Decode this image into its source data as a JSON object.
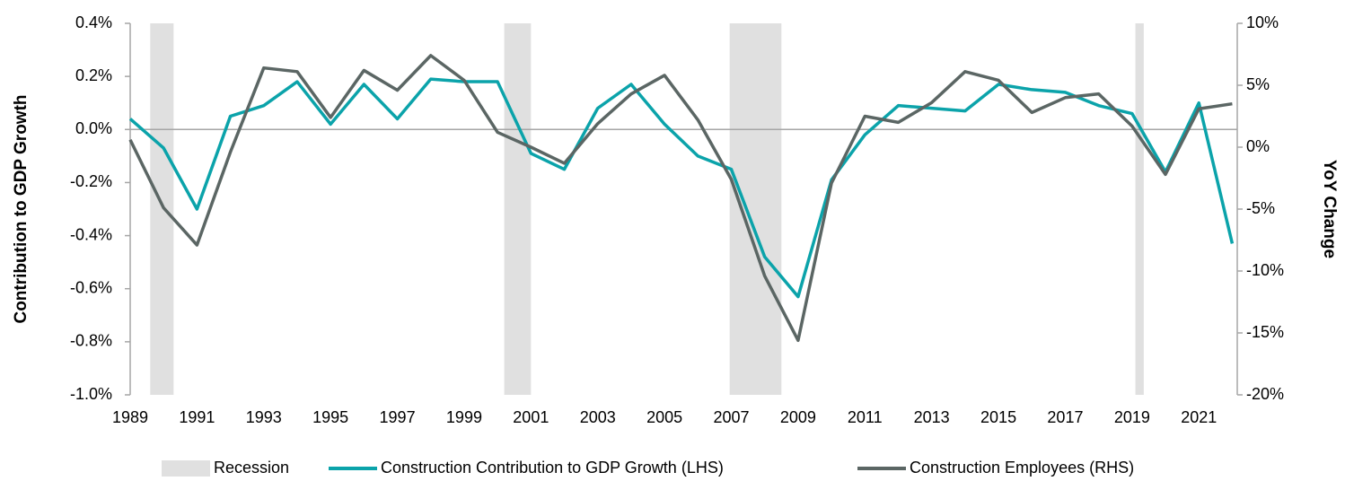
{
  "chart_data": {
    "type": "line",
    "y_label": "Contribution to GDP Growth",
    "y2_label": "YoY Change",
    "x": [
      1989,
      1990,
      1991,
      1992,
      1993,
      1994,
      1995,
      1996,
      1997,
      1998,
      1999,
      2000,
      2001,
      2002,
      2003,
      2004,
      2005,
      2006,
      2007,
      2008,
      2009,
      2010,
      2011,
      2012,
      2013,
      2014,
      2015,
      2016,
      2017,
      2018,
      2019,
      2020,
      2021,
      2022
    ],
    "xlim": [
      1989,
      2022.15
    ],
    "xticks": [
      1989,
      1991,
      1993,
      1995,
      1997,
      1999,
      2001,
      2003,
      2005,
      2007,
      2009,
      2011,
      2013,
      2015,
      2017,
      2019,
      2021
    ],
    "ylim": [
      -1.0,
      0.4
    ],
    "yticks": [
      {
        "value": -1.0,
        "label": "-1.0%"
      },
      {
        "value": -0.8,
        "label": "-0.8%"
      },
      {
        "value": -0.6,
        "label": "-0.6%"
      },
      {
        "value": -0.4,
        "label": "-0.4%"
      },
      {
        "value": -0.2,
        "label": "-0.2%"
      },
      {
        "value": 0.0,
        "label": "0.0%"
      },
      {
        "value": 0.2,
        "label": "0.2%"
      },
      {
        "value": 0.4,
        "label": "0.4%"
      }
    ],
    "y2lim": [
      -20,
      10
    ],
    "y2ticks": [
      {
        "value": -20,
        "label": "-20%"
      },
      {
        "value": -15,
        "label": "-15%"
      },
      {
        "value": -10,
        "label": "-10%"
      },
      {
        "value": -5,
        "label": "-5%"
      },
      {
        "value": 0,
        "label": "0%"
      },
      {
        "value": 5,
        "label": "5%"
      },
      {
        "value": 10,
        "label": "10%"
      }
    ],
    "recession": {
      "name": "Recession",
      "color": "#e0e0e0",
      "spans": [
        [
          1989.6,
          1990.3
        ],
        [
          2000.2,
          2001.0
        ],
        [
          2006.95,
          2008.5
        ],
        [
          2019.1,
          2019.35
        ]
      ]
    },
    "series": [
      {
        "name": "Construction Contribution to GDP Growth (LHS)",
        "color": "#0ba3aa",
        "axis": "y",
        "values": [
          0.04,
          -0.07,
          -0.3,
          0.05,
          0.09,
          0.18,
          0.02,
          0.17,
          0.04,
          0.19,
          0.18,
          0.18,
          -0.09,
          -0.15,
          0.08,
          0.17,
          0.02,
          -0.1,
          -0.15,
          -0.48,
          -0.63,
          -0.19,
          -0.02,
          0.09,
          0.08,
          0.07,
          0.17,
          0.15,
          0.14,
          0.09,
          0.06,
          -0.16,
          0.1,
          -0.43
        ]
      },
      {
        "name": "Construction Employees (RHS)",
        "color": "#5b6664",
        "axis": "y2",
        "values": [
          0.6,
          -4.9,
          -7.9,
          -0.4,
          6.4,
          6.1,
          2.4,
          6.2,
          4.6,
          7.4,
          5.4,
          1.2,
          0.0,
          -1.3,
          1.9,
          4.3,
          5.8,
          2.2,
          -2.6,
          -10.4,
          -15.6,
          -2.9,
          2.5,
          2.0,
          3.6,
          6.1,
          5.4,
          2.8,
          4.0,
          4.3,
          1.7,
          -2.2,
          3.1,
          3.5
        ]
      }
    ]
  }
}
